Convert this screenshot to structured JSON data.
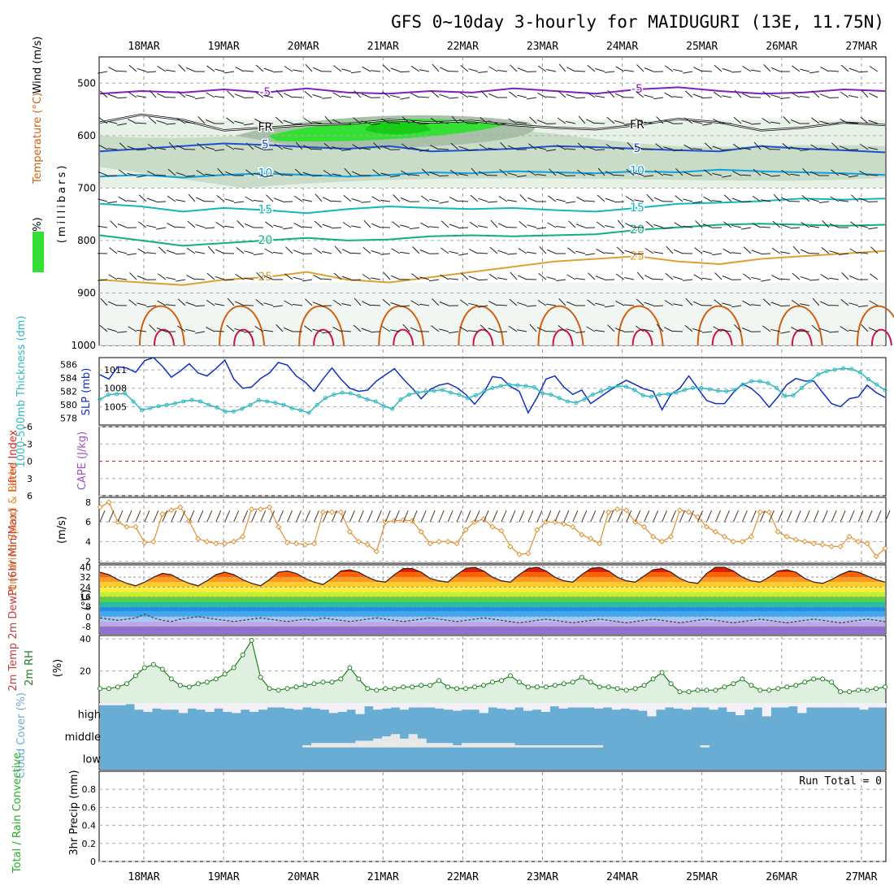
{
  "title": "GFS 0~10day 3-hourly for MAIDUGURI (13E, 11.75N)",
  "colors": {
    "rh_light": "#e6f2e6",
    "rh_mid": "#c8dcc8",
    "rh_dark": "#a8c0a8",
    "rh_bright": "#33e033",
    "rh_brightest": "#1acc1a",
    "temp_purple": "#8020c0",
    "temp_blue": "#2050d0",
    "temp_lightblue": "#10a0e0",
    "temp_teal": "#10b8b8",
    "temp_green": "#10b080",
    "temp_orange": "#e0a030",
    "temp_darkorange": "#d06010",
    "temp_red": "#d01040",
    "slp": "#1030c0",
    "thickness": "#30b8c0",
    "lifted_index": "#e02020",
    "wind_speed": "#e09030",
    "rh2m": "#208020",
    "rh2m_fill": "#e0f0e0",
    "cloud": "#6aadd4",
    "cloud_clear": "#f4f0f8"
  },
  "chart_data": [
    {
      "type": "heatmap",
      "name": "upper-air-cross-section",
      "ylabel_parts": [
        "RH (%)",
        "Temperature (°C)",
        "Wind (m/s)",
        "(millibars)"
      ],
      "x_dates": [
        "18MAR",
        "19MAR",
        "20MAR",
        "21MAR",
        "22MAR",
        "23MAR",
        "24MAR",
        "25MAR",
        "26MAR",
        "27MAR"
      ],
      "y_ticks": [
        500,
        600,
        700,
        800,
        900,
        1000
      ],
      "ylim": [
        450,
        1000
      ],
      "freezing_label": "FR",
      "isotherms": [
        {
          "label": "-5",
          "levels": [
            520,
            515,
            518,
            512,
            518,
            510,
            518,
            520,
            515,
            518,
            510,
            515,
            520,
            512,
            508,
            515,
            520,
            518,
            512,
            515
          ]
        },
        {
          "label": "0",
          "levels": [
            575,
            560,
            570,
            590,
            585,
            580,
            578,
            570,
            575,
            572,
            580,
            585,
            588,
            580,
            568,
            575,
            590,
            585,
            575,
            580
          ]
        },
        {
          "label": "5",
          "levels": [
            630,
            625,
            620,
            615,
            618,
            622,
            625,
            620,
            630,
            628,
            625,
            620,
            622,
            625,
            628,
            630,
            620,
            625,
            628,
            632
          ]
        },
        {
          "label": "10",
          "levels": [
            678,
            675,
            680,
            675,
            672,
            675,
            678,
            675,
            670,
            672,
            668,
            670,
            672,
            668,
            670,
            665,
            668,
            670,
            672,
            675
          ]
        },
        {
          "label": "15",
          "levels": [
            730,
            735,
            745,
            738,
            742,
            748,
            740,
            735,
            738,
            740,
            738,
            742,
            745,
            738,
            730,
            728,
            725,
            720,
            722,
            720
          ]
        },
        {
          "label": "20",
          "levels": [
            790,
            800,
            810,
            805,
            800,
            795,
            800,
            798,
            792,
            790,
            792,
            790,
            788,
            780,
            775,
            770,
            768,
            770,
            772,
            770
          ]
        },
        {
          "label": "25",
          "levels": [
            875,
            880,
            885,
            875,
            870,
            860,
            875,
            880,
            870,
            860,
            850,
            840,
            835,
            830,
            840,
            845,
            835,
            830,
            825,
            820
          ]
        }
      ],
      "annotations": [
        "-5",
        "-5",
        "FR",
        "FR",
        "5",
        "5",
        "10",
        "10",
        "15",
        "15",
        "20",
        "20",
        "25",
        "25",
        "30",
        "30",
        "30",
        "30",
        "10"
      ]
    },
    {
      "type": "line",
      "name": "slp-thickness",
      "ylabel_left": "1000-500mb Thickness (dm)",
      "ylabel_right": "SLP (mb)",
      "left_ticks": [
        586,
        584,
        582,
        580,
        578
      ],
      "left_range": [
        577,
        587
      ],
      "right_ticks": [
        1011,
        1008,
        1005
      ],
      "right_range": [
        1002,
        1013
      ],
      "series": [
        {
          "name": "SLP",
          "axis": "right",
          "values": [
            1010.2,
            1009.5,
            1011.5,
            1011.3,
            1010.6,
            1012.5,
            1013,
            1011.6,
            1009.8,
            1010.8,
            1012,
            1010.5,
            1010,
            1011.2,
            1012.6,
            1009.5,
            1008,
            1008.2,
            1009.6,
            1010.5,
            1012.2,
            1011.8,
            1010,
            1009,
            1007.5,
            1009.5,
            1011.3,
            1009.5,
            1008,
            1007.5,
            1007.7,
            1009.2,
            1010.2,
            1011.2,
            1009.5,
            1008,
            1006.3,
            1007.8,
            1008.5,
            1008.8,
            1008.1,
            1007,
            1005.4,
            1007.2,
            1009.9,
            1009.7,
            1008.3,
            1007.5,
            1004,
            1006.5,
            1009.5,
            1010,
            1008.2,
            1007,
            1007.7,
            1005.5,
            1006.5,
            1007.5,
            1008.5,
            1009.3,
            1008.6,
            1007.9,
            1007.5,
            1004.5,
            1007,
            1008,
            1010,
            1008,
            1006,
            1005.5,
            1005.5,
            1007.3,
            1008.7,
            1008,
            1006.7,
            1004.9,
            1006.6,
            1008.6,
            1009.6,
            1009.2,
            1009.2,
            1007.3,
            1005.5,
            1005,
            1006.3,
            1006.6,
            1008.5,
            1007.3,
            1006.5
          ]
        },
        {
          "name": "Thickness",
          "axis": "left",
          "values": [
            580.8,
            581.5,
            581.6,
            581.7,
            580.5,
            579.2,
            579.5,
            579.8,
            580,
            580.2,
            580.5,
            580.7,
            580.5,
            580,
            579.6,
            579,
            579,
            579.4,
            580,
            580.7,
            580.5,
            580.3,
            580,
            579.5,
            579.2,
            578.8,
            580,
            581,
            581.5,
            581.8,
            581.7,
            581.3,
            580.8,
            580.5,
            579.8,
            579.4,
            580.8,
            581.5,
            581.8,
            582,
            582.1,
            582.2,
            581.8,
            581.5,
            581,
            581.4,
            582,
            582.5,
            582.8,
            583,
            582.9,
            582.8,
            582.6,
            581.7,
            581.5,
            581,
            580.5,
            580.3,
            580.8,
            581.5,
            582,
            582.5,
            582.8,
            582.7,
            582.2,
            581.4,
            581.2,
            581.5,
            581.6,
            581.8,
            582.2,
            582.5,
            582.5,
            582.3,
            582.1,
            582,
            582.2,
            583,
            583.5,
            583.5,
            583.2,
            582.5,
            581.3,
            581.4,
            582.5,
            583.5,
            584.5,
            585,
            585.2,
            585.4,
            585.3,
            584.8,
            583.8,
            583,
            582.2
          ]
        }
      ]
    },
    {
      "type": "line",
      "name": "lifted-index-cape",
      "ylabel_left": "Lifted Index",
      "ylabel_right": "CAPE (J/kg)",
      "ticks": [
        "-6",
        "-3",
        "0",
        "3",
        "6"
      ],
      "range": [
        -6,
        6
      ],
      "zero_line": 0
    },
    {
      "type": "line",
      "name": "10m-wind",
      "ylabel_left": "10m Wind Speed & Barbs",
      "ylabel_right": "(m/s)",
      "ticks": [
        8,
        6,
        4,
        2
      ],
      "range": [
        1.8,
        8.5
      ],
      "series": [
        {
          "name": "Wind Speed",
          "values": [
            7.5,
            8,
            6,
            5.5,
            5.5,
            3.9,
            4,
            6.8,
            7.2,
            7.5,
            6.1,
            4.3,
            4,
            3.8,
            3.8,
            4,
            4.5,
            7.3,
            7.3,
            7.5,
            5.5,
            3.9,
            3.8,
            3.7,
            3.8,
            7,
            7,
            7,
            5,
            4,
            3.7,
            3,
            6,
            6.1,
            6.2,
            6.1,
            5,
            3.8,
            4,
            4,
            3.8,
            5.2,
            6,
            6.3,
            5.5,
            5.1,
            3.5,
            2.7,
            2.8,
            5.2,
            6,
            6,
            5.8,
            5.5,
            4.7,
            4.3,
            3.8,
            7,
            7.3,
            7.2,
            6,
            5.5,
            4.5,
            4,
            4.5,
            7.2,
            7,
            6.5,
            5.5,
            5,
            4.5,
            4,
            4,
            4.5,
            7,
            7,
            5,
            4.5,
            4.2,
            4,
            3.8,
            3.7,
            3.5,
            3.5,
            4.5,
            4,
            3.8,
            2.5,
            3.3
          ]
        }
      ]
    },
    {
      "type": "area",
      "name": "2m-temp-dewpoint",
      "ylabel_left": "2m Temp 2m DewPt (6hr Min/Max)",
      "ylabel_right": "(°C)",
      "ticks": [
        40,
        32,
        24,
        16,
        8,
        0,
        -8
      ],
      "range": [
        -14,
        42
      ],
      "series": [
        {
          "name": "2m Temp",
          "values": [
            36,
            34,
            30,
            27,
            25,
            28,
            32,
            35,
            34,
            30,
            27,
            25,
            29,
            34,
            36,
            34,
            30,
            27,
            25,
            30,
            36,
            37,
            35,
            31,
            28,
            26,
            31,
            37,
            38,
            36,
            32,
            29,
            28,
            34,
            39,
            39,
            36,
            31,
            29,
            28,
            34,
            39,
            40,
            37,
            32,
            29,
            28,
            34,
            39,
            40,
            37,
            32,
            29,
            28,
            34,
            39,
            40,
            37,
            32,
            29,
            28,
            33,
            38,
            39,
            36,
            31,
            28,
            27,
            35,
            40,
            40,
            37,
            32,
            29,
            28,
            32,
            37,
            38,
            36,
            31,
            28,
            27,
            30,
            34,
            37,
            36,
            33,
            30,
            28
          ]
        },
        {
          "name": "2m DewPt",
          "values": [
            -1,
            -2,
            -3,
            -2,
            -1,
            2,
            -1,
            -3,
            -4,
            -2,
            -1,
            0,
            -1,
            -2,
            -3,
            -4,
            -3,
            -2,
            -1,
            -2,
            -3,
            -4,
            -3,
            -2,
            -3,
            -1,
            -2,
            -3,
            -4,
            -3,
            -2,
            -1,
            -2,
            -3,
            -4,
            -3,
            -2,
            -1,
            -2,
            -3,
            -4,
            -3,
            -2,
            -1,
            -2,
            -3,
            -4,
            -5,
            -4,
            -3,
            -2,
            -3,
            -4,
            -5,
            -4,
            -3,
            -2,
            -3,
            -4,
            -5,
            -4,
            -3,
            -2,
            -3,
            -4,
            -5,
            -4,
            -3,
            -2,
            -3,
            -4,
            -5,
            -4,
            -3,
            -2,
            -3,
            -4,
            -5,
            -4,
            -3,
            -2,
            -3,
            -4,
            -5,
            -4,
            -3,
            -2,
            -3,
            -4
          ]
        }
      ]
    },
    {
      "type": "area",
      "name": "2m-rh",
      "ylabel_left": "2m RH",
      "ylabel_right": "(%)",
      "ticks": [
        40,
        20
      ],
      "range": [
        0,
        42
      ],
      "series": [
        {
          "name": "2m RH",
          "values": [
            9,
            9,
            10,
            12,
            17,
            22,
            24,
            21,
            15,
            11,
            10,
            12,
            13,
            15,
            18,
            22,
            30,
            39,
            16,
            9,
            8,
            9,
            10,
            11,
            12,
            13,
            13,
            15,
            22,
            15,
            9,
            8,
            9,
            9,
            10,
            10,
            11,
            11,
            14,
            10,
            9,
            9,
            10,
            11,
            13,
            14,
            17,
            13,
            10,
            10,
            10,
            11,
            12,
            13,
            16,
            13,
            10,
            10,
            9,
            8,
            9,
            11,
            15,
            19,
            12,
            7,
            7,
            8,
            8,
            8,
            10,
            12,
            15,
            11,
            8,
            8,
            9,
            10,
            11,
            13,
            15,
            15,
            13,
            7,
            7,
            8,
            8,
            9,
            10
          ]
        }
      ]
    },
    {
      "type": "bar",
      "name": "cloud-cover",
      "ylabel_left": "Cloud Cover (%)",
      "layers": [
        "high",
        "middle",
        "low"
      ],
      "high": [
        90,
        90,
        90,
        95,
        70,
        60,
        75,
        70,
        70,
        55,
        75,
        70,
        60,
        75,
        60,
        55,
        70,
        60,
        70,
        80,
        80,
        75,
        70,
        80,
        75,
        70,
        55,
        60,
        70,
        50,
        85,
        70,
        75,
        80,
        70,
        80,
        80,
        80,
        75,
        70,
        65,
        70,
        70,
        55,
        80,
        75,
        70,
        80,
        65,
        70,
        60,
        85,
        75,
        80,
        80,
        80,
        75,
        80,
        70,
        75,
        70,
        65,
        40,
        70,
        80,
        75,
        70,
        80,
        80,
        70,
        80,
        60,
        45,
        70,
        80,
        40,
        80,
        80,
        85,
        55,
        80,
        80,
        80,
        80,
        80,
        80,
        70,
        80,
        80
      ],
      "middle": [
        0,
        0,
        0,
        0,
        0,
        0,
        0,
        0,
        0,
        0,
        0,
        0,
        0,
        0,
        0,
        0,
        0,
        0,
        0,
        0,
        0,
        0,
        0,
        10,
        20,
        20,
        20,
        20,
        20,
        30,
        30,
        40,
        50,
        60,
        40,
        60,
        40,
        20,
        20,
        20,
        10,
        20,
        20,
        20,
        20,
        20,
        20,
        10,
        10,
        10,
        10,
        10,
        10,
        10,
        10,
        10,
        10,
        0,
        0,
        0,
        0,
        0,
        0,
        0,
        0,
        0,
        0,
        0,
        10,
        0,
        0,
        0,
        0,
        0,
        0,
        0,
        0,
        0,
        0,
        0,
        0,
        0,
        0,
        0,
        0,
        0,
        0,
        0,
        0
      ]
    },
    {
      "type": "bar",
      "name": "3hr-precip",
      "ylabel_left": "Total / Rain Convective",
      "ylabel_right": "3hr Precip (mm)",
      "ticks": [
        "0.8",
        "0.6",
        "0.4",
        "0.2",
        "0"
      ],
      "range": [
        0,
        1
      ],
      "run_total": "Run Total = 0"
    }
  ]
}
